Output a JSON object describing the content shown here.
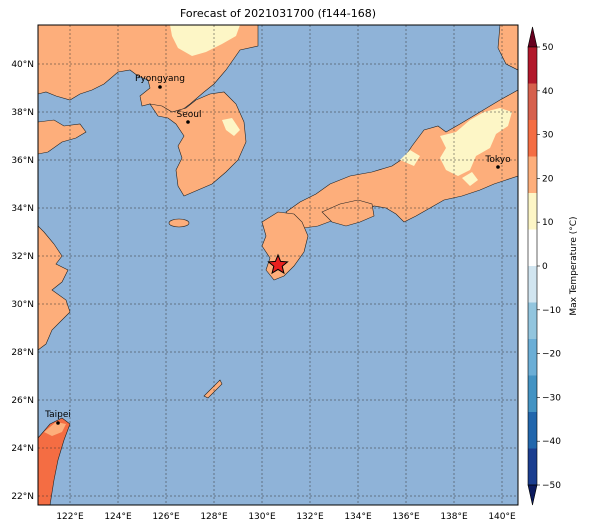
{
  "title": "Forecast of 2021031700 (f144-168)",
  "colors": {
    "ocean": "#8fb3d8",
    "land_cool": "#fdf6c6",
    "land_mild": "#fdae7b",
    "land_warm": "#f46d43",
    "grid": "#333333"
  },
  "axes": {
    "lon_ticks": [
      "122°E",
      "124°E",
      "126°E",
      "128°E",
      "130°E",
      "132°E",
      "134°E",
      "136°E",
      "138°E",
      "140°E"
    ],
    "lat_ticks": [
      "40°N",
      "38°N",
      "36°N",
      "34°N",
      "32°N",
      "30°N",
      "28°N",
      "26°N",
      "24°N",
      "22°N"
    ]
  },
  "cities": [
    {
      "name": "Pyongyang"
    },
    {
      "name": "Seoul"
    },
    {
      "name": "Tokyo"
    },
    {
      "name": "Taipei"
    }
  ],
  "marker": {
    "type": "star",
    "color": "#e8201e"
  },
  "colorbar": {
    "label": "Max Temperature (°C)",
    "ticks": [
      "50",
      "40",
      "30",
      "20",
      "10",
      "0",
      "−10",
      "−20",
      "−30",
      "−40",
      "−50"
    ],
    "colors": [
      "#67001f",
      "#b2182b",
      "#d6604d",
      "#f46d43",
      "#fdae7b",
      "#fdf6c6",
      "#ffffff",
      "#d1e5f0",
      "#92c5de",
      "#6baed6",
      "#4393c3",
      "#2166ac",
      "#1a3d8f",
      "#0b1a5e"
    ]
  }
}
